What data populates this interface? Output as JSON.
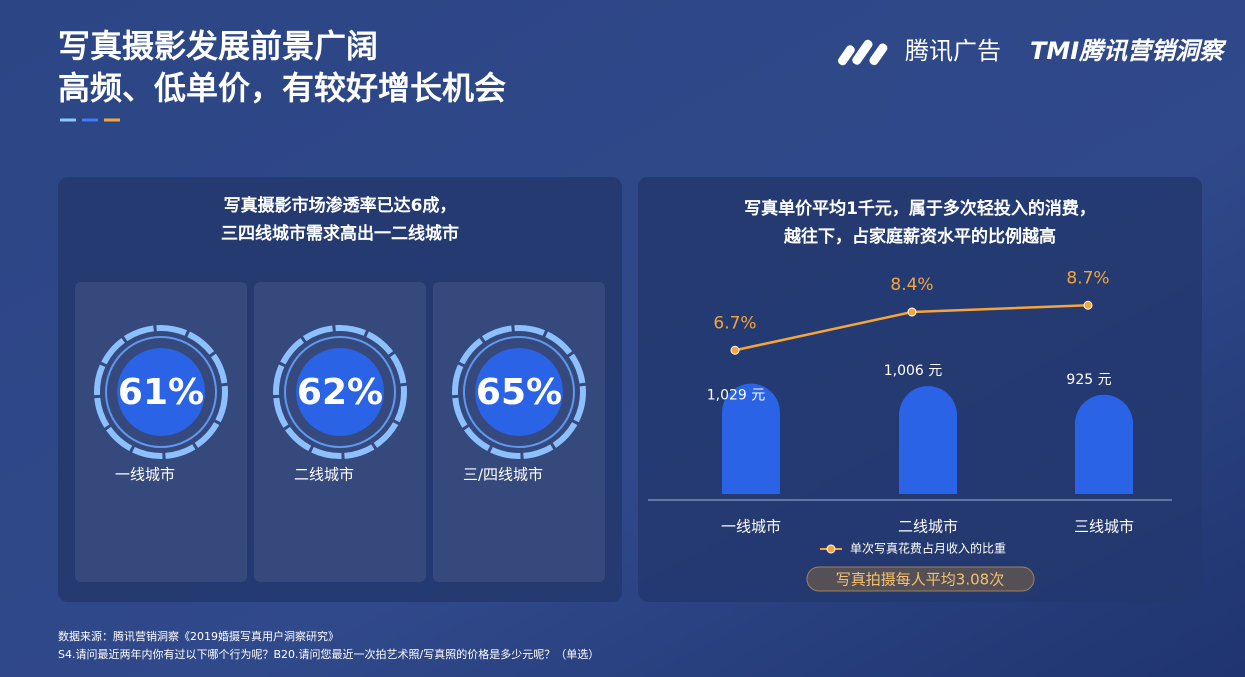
{
  "header": {
    "title_lines": [
      "写真摄影发展前景广阔",
      "高频、低单价，有较好增长机会"
    ],
    "logo": "腾讯广告",
    "logo2": "TMI腾讯营销洞察"
  },
  "chart_data": [
    {
      "type": "ring",
      "title_lines": [
        "写真摄影市场渗透率已达6成，",
        "三四线城市需求高出一二线城市"
      ],
      "categories": [
        "一线城市",
        "二线城市",
        "三/四线城市"
      ],
      "values": [
        61,
        62,
        65
      ],
      "value_labels": [
        "61%",
        "62%",
        "65%"
      ],
      "color": "#2a63e6"
    },
    {
      "type": "bar_line",
      "title_lines": [
        "写真单价平均1千元，属于多次轻投入的消费，",
        "越往下，占家庭薪资水平的比例越高"
      ],
      "categories": [
        "一线城市",
        "二线城市",
        "三线城市"
      ],
      "series": [
        {
          "values": [
            1029,
            1006,
            925
          ],
          "value_labels": [
            "1,029 元",
            "1,006 元",
            "925 元"
          ],
          "color": "#2a63e6"
        },
        {
          "name": "单次写真花费占月收入的比重",
          "values": [
            6.7,
            8.4,
            8.7
          ],
          "value_labels": [
            "6.7%",
            "8.4%",
            "8.7%"
          ],
          "color": "#f5a53a",
          "axis": "y2"
        }
      ],
      "ylim": [
        0,
        1100
      ],
      "y2lim": [
        4,
        10
      ],
      "annotation": "写真拍摄每人平均3.08次"
    }
  ],
  "footer": {
    "source": "数据来源：腾讯营销洞察《2019婚摄写真用户洞察研究》",
    "note": "S4.请问最近两年内你有过以下哪个行为呢？B20.请问您最近一次拍艺术照/写真照的价格是多少元呢？（单选）"
  }
}
